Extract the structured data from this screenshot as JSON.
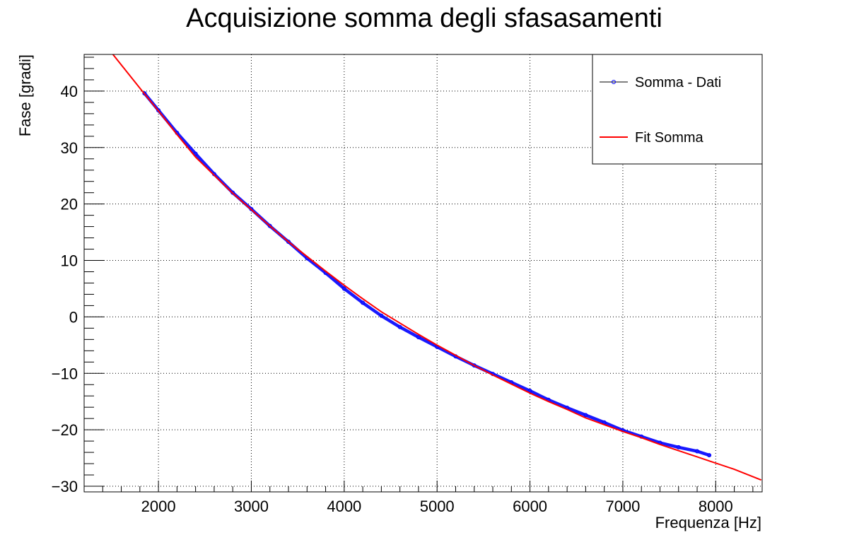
{
  "chart_data": {
    "type": "scatter",
    "title": "Acquisizione somma degli sfasasamenti",
    "xlabel": "Frequenza [Hz]",
    "ylabel": "Fase [gradi]",
    "xlim": [
      1200,
      8500
    ],
    "ylim": [
      -31,
      46.5
    ],
    "x_ticks": [
      2000,
      3000,
      4000,
      5000,
      6000,
      7000,
      8000
    ],
    "x_tick_labels": [
      "2000",
      "3000",
      "4000",
      "5000",
      "6000",
      "7000",
      "8000"
    ],
    "y_ticks": [
      -30,
      -20,
      -10,
      0,
      10,
      20,
      30,
      40
    ],
    "y_tick_labels": [
      "−30",
      "−20",
      "−10",
      "0",
      "10",
      "20",
      "30",
      "40"
    ],
    "grid": true,
    "legend_position": "top-right",
    "series": [
      {
        "name": "Somma - Dati",
        "kind": "markers",
        "color": "#0000ff",
        "x": [
          1850,
          2000,
          2200,
          2400,
          2600,
          2800,
          3000,
          3200,
          3400,
          3600,
          3800,
          4000,
          4200,
          4400,
          4600,
          4800,
          5000,
          5200,
          5400,
          5600,
          5800,
          6000,
          6200,
          6400,
          6600,
          6800,
          7000,
          7200,
          7400,
          7600,
          7800,
          7930
        ],
        "y": [
          39.6,
          36.6,
          32.6,
          28.9,
          25.3,
          22.0,
          19.1,
          16.1,
          13.3,
          10.4,
          7.8,
          5.0,
          2.5,
          0.2,
          -1.8,
          -3.6,
          -5.3,
          -7.0,
          -8.6,
          -10.1,
          -11.6,
          -13.1,
          -14.7,
          -16.1,
          -17.4,
          -18.7,
          -20.1,
          -21.2,
          -22.3,
          -23.1,
          -23.8,
          -24.5
        ]
      },
      {
        "name": "Fit Somma",
        "kind": "line",
        "color": "#ff0000",
        "x": [
          1510,
          1850,
          2000,
          2200,
          2400,
          2600,
          2800,
          3000,
          3200,
          3400,
          3600,
          3800,
          4000,
          4200,
          4400,
          4600,
          4800,
          5000,
          5200,
          5400,
          5600,
          5800,
          6000,
          6200,
          6400,
          6600,
          6800,
          7000,
          7200,
          7400,
          7600,
          7800,
          8000,
          8200,
          8490
        ],
        "y": [
          46.5,
          39.5,
          36.5,
          32.3,
          28.3,
          25.1,
          21.9,
          19.0,
          16.1,
          13.3,
          10.7,
          8.1,
          5.6,
          3.2,
          0.9,
          -1.1,
          -3.1,
          -5.0,
          -6.8,
          -8.6,
          -10.3,
          -11.9,
          -13.5,
          -15.0,
          -16.4,
          -17.9,
          -19.1,
          -20.3,
          -21.4,
          -22.6,
          -23.7,
          -24.8,
          -25.9,
          -27.0,
          -28.9
        ]
      }
    ]
  }
}
